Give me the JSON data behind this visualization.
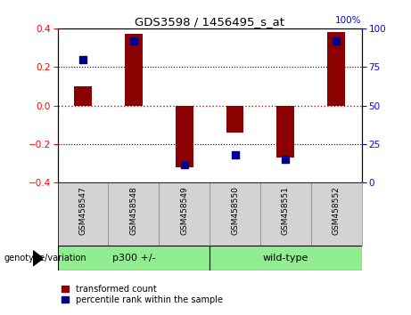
{
  "title": "GDS3598 / 1456495_s_at",
  "samples": [
    "GSM458547",
    "GSM458548",
    "GSM458549",
    "GSM458550",
    "GSM458551",
    "GSM458552"
  ],
  "red_bars": [
    0.1,
    0.37,
    -0.32,
    -0.14,
    -0.27,
    0.38
  ],
  "blue_dot_percentile": [
    80,
    92,
    12,
    18,
    15,
    92
  ],
  "groups": [
    {
      "label": "p300 +/-",
      "indices": [
        0,
        1,
        2
      ],
      "color": "#90ee90"
    },
    {
      "label": "wild-type",
      "indices": [
        3,
        4,
        5
      ],
      "color": "#90ee90"
    }
  ],
  "group_label_prefix": "genotype/variation",
  "ylim": [
    -0.4,
    0.4
  ],
  "yticks_left": [
    -0.4,
    -0.2,
    0.0,
    0.2,
    0.4
  ],
  "yticks_right": [
    0,
    25,
    50,
    75,
    100
  ],
  "bar_color": "#8B0000",
  "dot_color": "#00008B",
  "grid_color": "#000000",
  "zero_line_color": "#cc0000",
  "bg_color": "#ffffff",
  "plot_bg_color": "#ffffff",
  "tick_bg_color": "#d3d3d3",
  "legend_red_label": "transformed count",
  "legend_blue_label": "percentile rank within the sample",
  "bar_width": 0.35,
  "dot_size": 40
}
